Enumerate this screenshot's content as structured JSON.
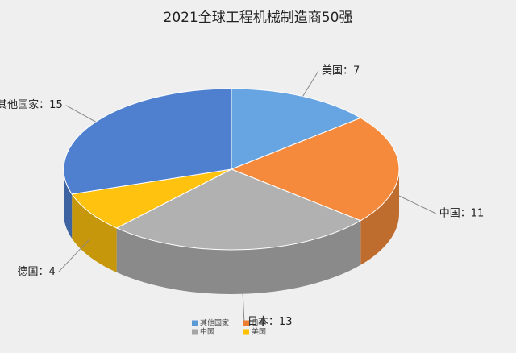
{
  "chart_data": {
    "type": "pie3d",
    "title": "2021全球工程机械制造商50强",
    "categories": [
      "美国",
      "中国",
      "日本",
      "德国",
      "其他国家"
    ],
    "values": [
      7,
      11,
      13,
      4,
      15
    ],
    "value_labels": [
      "美国：7",
      "中国：11",
      "日本：13",
      "德国：4",
      "其他国家：15"
    ],
    "colors": [
      "#66a5e2",
      "#f58a3c",
      "#b1b1b1",
      "#ffc20e",
      "#4f7fcf"
    ],
    "legend": [
      {
        "name": "其他国家",
        "color": "#5b9bd5"
      },
      {
        "name": "日本",
        "color": "#ed7d31"
      },
      {
        "name": "中国",
        "color": "#a5a5a5"
      },
      {
        "name": "美国",
        "color": "#ffc000"
      }
    ]
  }
}
